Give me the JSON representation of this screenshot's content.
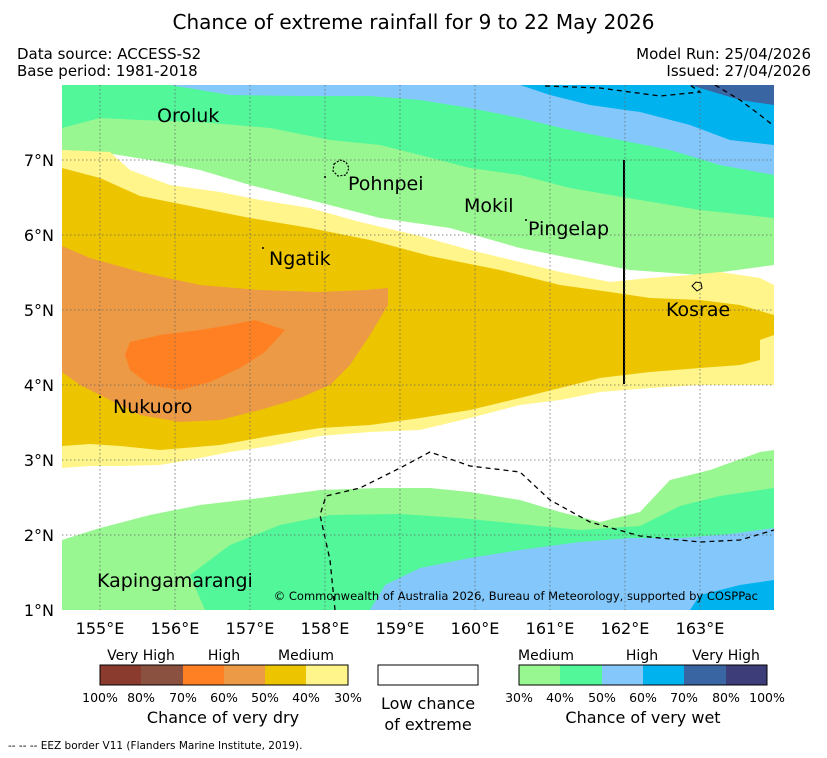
{
  "title": "Chance of extreme rainfall for 9 to 22 May 2026",
  "meta": {
    "data_source": "Data source: ACCESS-S2",
    "base_period": "Base period: 1981-2018",
    "model_run": "Model Run: 25/04/2026",
    "issued": "Issued: 27/04/2026"
  },
  "map": {
    "x_ticks": [
      "155°E",
      "156°E",
      "157°E",
      "158°E",
      "159°E",
      "160°E",
      "161°E",
      "162°E",
      "163°E"
    ],
    "y_ticks": [
      "7°N",
      "6°N",
      "5°N",
      "4°N",
      "3°N",
      "2°N",
      "1°N"
    ],
    "places": {
      "oroluk": "Oroluk",
      "pohnpei": "Pohnpei",
      "mokil": "Mokil",
      "pingelap": "Pingelap",
      "ngatik": "Ngatik",
      "kosrae": "Kosrae",
      "nukuoro": "Nukuoro",
      "kapingamarangi": "Kapingamarangi"
    },
    "copyright": "© Commonwealth of Australia 2026, Bureau of Meteorology, supported by COSPPac"
  },
  "legend": {
    "dry": {
      "categories": [
        "Very High",
        "High",
        "Medium"
      ],
      "ticks": [
        "100%",
        "80%",
        "70%",
        "60%",
        "50%",
        "40%",
        "30%"
      ],
      "colors": [
        "#8b3a2e",
        "#8b5140",
        "#ff8022",
        "#ec9a45",
        "#ecc500",
        "#fff58a"
      ],
      "caption": "Chance of very dry"
    },
    "low": {
      "line1": "Low chance",
      "line2": "of extreme",
      "color": "#ffffff"
    },
    "wet": {
      "categories": [
        "Medium",
        "High",
        "Very High"
      ],
      "ticks": [
        "30%",
        "40%",
        "50%",
        "60%",
        "70%",
        "80%",
        "100%"
      ],
      "colors": [
        "#98f790",
        "#52f79a",
        "#84c8fb",
        "#00b2ee",
        "#3a65a3",
        "#3d3e79"
      ],
      "caption": "Chance of very wet"
    }
  },
  "footnote": "-- -- -- EEZ border V11 (Flanders Marine Institute, 2019)."
}
